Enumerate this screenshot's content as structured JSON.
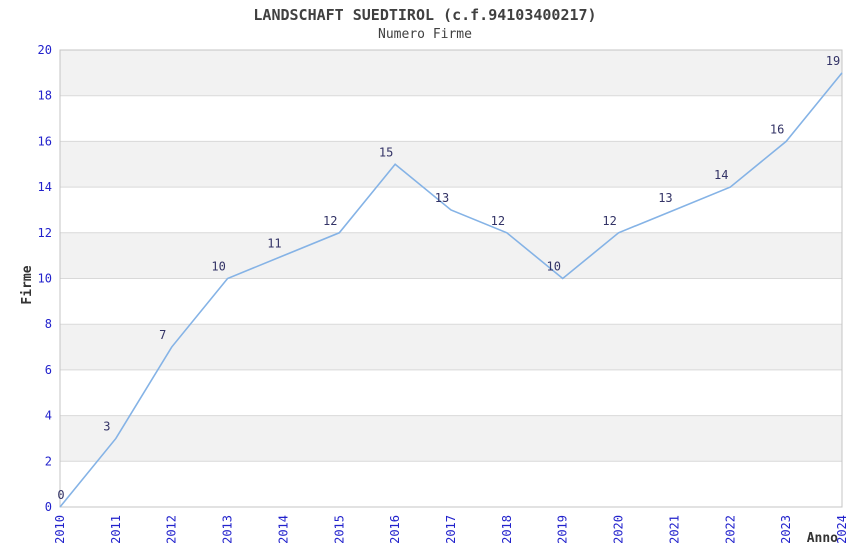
{
  "chart_data": {
    "type": "line",
    "title": "LANDSCHAFT SUEDTIROL (c.f.94103400217)",
    "subtitle": "Numero Firme",
    "xlabel": "Anno",
    "ylabel": "Firme",
    "categories": [
      "2010",
      "2011",
      "2012",
      "2013",
      "2014",
      "2015",
      "2016",
      "2017",
      "2018",
      "2019",
      "2020",
      "2021",
      "2022",
      "2023",
      "2024"
    ],
    "values": [
      0,
      3,
      7,
      10,
      11,
      12,
      15,
      13,
      12,
      10,
      12,
      13,
      14,
      16,
      19
    ],
    "ylim": [
      0,
      20
    ],
    "ytick_step": 2,
    "data_labels_shown": true,
    "legend": "none",
    "grid": "horizontal-bands",
    "colors": {
      "line": "#85b3e6",
      "tick_label": "#2222cc",
      "data_label": "#333366",
      "band_gray": "#f2f2f2",
      "band_white": "#ffffff",
      "grid_line": "#d9d9d9",
      "plot_border": "#c4c4c4",
      "title_text": "#404040",
      "axis_title_text": "#333333"
    }
  }
}
